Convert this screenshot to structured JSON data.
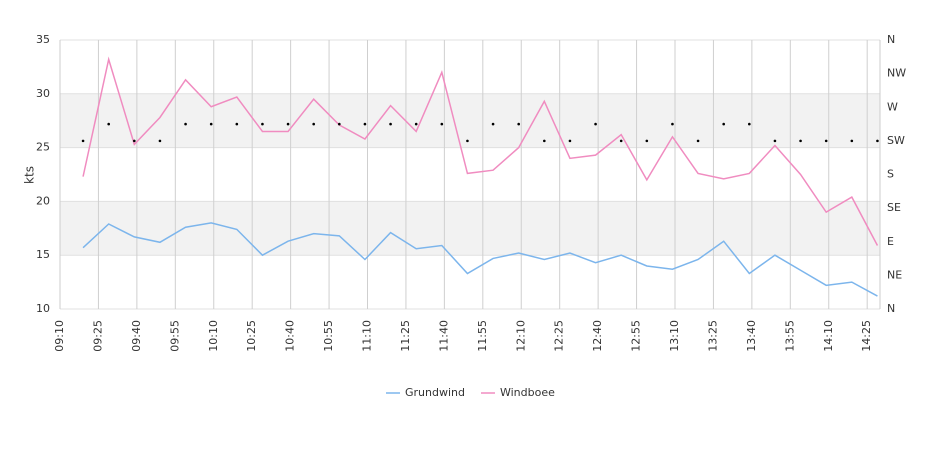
{
  "chart_data": {
    "type": "line",
    "ylabel": "kts",
    "x": [
      "09:19",
      "09:29",
      "09:39",
      "09:49",
      "09:59",
      "10:09",
      "10:19",
      "10:29",
      "10:39",
      "10:49",
      "10:59",
      "11:09",
      "11:19",
      "11:29",
      "11:39",
      "11:49",
      "11:59",
      "12:09",
      "12:19",
      "12:29",
      "12:39",
      "12:49",
      "12:59",
      "13:09",
      "13:19",
      "13:29",
      "13:39",
      "13:49",
      "13:59",
      "14:09",
      "14:19",
      "14:29"
    ],
    "xlim": [
      "09:10",
      "14:30"
    ],
    "xticks": [
      "09:10",
      "09:25",
      "09:40",
      "09:55",
      "10:10",
      "10:25",
      "10:40",
      "10:55",
      "11:10",
      "11:25",
      "11:40",
      "11:55",
      "12:10",
      "12:25",
      "12:40",
      "12:55",
      "13:10",
      "13:25",
      "13:40",
      "13:55",
      "14:10",
      "14:25"
    ],
    "ylim": [
      10,
      35
    ],
    "yticks": [
      10,
      15,
      20,
      25,
      30,
      35
    ],
    "bands": [
      [
        15,
        20
      ],
      [
        25,
        30
      ]
    ],
    "y2lim": [
      0,
      360
    ],
    "y2ticks": [
      {
        "value": 0,
        "label": "N"
      },
      {
        "value": 45,
        "label": "NE"
      },
      {
        "value": 90,
        "label": "E"
      },
      {
        "value": 135,
        "label": "SE"
      },
      {
        "value": 180,
        "label": "S"
      },
      {
        "value": 225,
        "label": "SW"
      },
      {
        "value": 270,
        "label": "W"
      },
      {
        "value": 315,
        "label": "NW"
      },
      {
        "value": 360,
        "label": "N"
      }
    ],
    "grid": true,
    "legend": "bottom",
    "series": [
      {
        "name": "Grundwind",
        "color": "#7cb5ec",
        "values": [
          15.7,
          17.9,
          16.7,
          16.2,
          17.6,
          18.0,
          17.4,
          15.0,
          16.3,
          17.0,
          16.8,
          14.6,
          17.1,
          15.6,
          15.9,
          13.3,
          14.7,
          15.2,
          14.6,
          15.2,
          14.3,
          15.0,
          14.0,
          13.7,
          14.6,
          16.3,
          13.3,
          15.0,
          13.6,
          12.2,
          12.5,
          11.2
        ]
      },
      {
        "name": "Windboee",
        "color": "#f08cc0",
        "values": [
          22.3,
          33.2,
          25.3,
          27.8,
          31.3,
          28.8,
          29.7,
          26.5,
          26.5,
          29.5,
          27.1,
          25.8,
          28.9,
          26.5,
          32.0,
          22.6,
          22.9,
          25.0,
          29.3,
          24.0,
          24.3,
          26.2,
          22.0,
          26.0,
          22.6,
          22.1,
          22.6,
          25.2,
          22.5,
          19.0,
          20.4,
          15.9
        ]
      }
    ],
    "direction": {
      "axis": "y2",
      "color": "#000000",
      "values": [
        225,
        247.5,
        225,
        225,
        247.5,
        247.5,
        247.5,
        247.5,
        247.5,
        247.5,
        247.5,
        247.5,
        247.5,
        247.5,
        247.5,
        225,
        247.5,
        247.5,
        225,
        225,
        247.5,
        225,
        225,
        247.5,
        225,
        247.5,
        247.5,
        225,
        225,
        225,
        225,
        225
      ]
    }
  }
}
